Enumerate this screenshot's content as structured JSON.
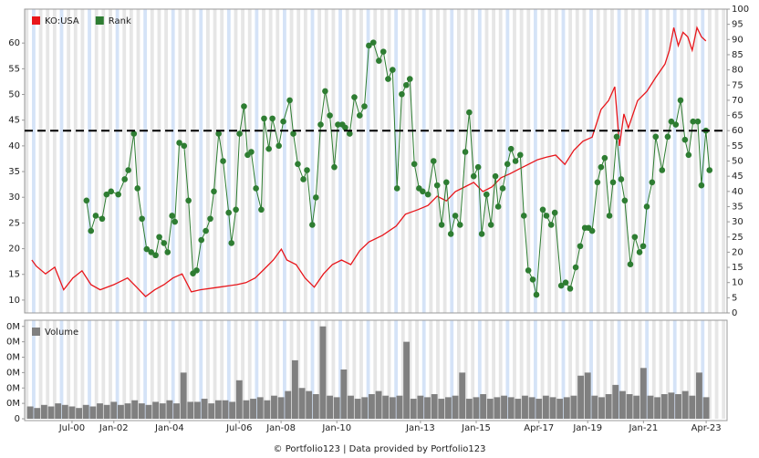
{
  "chart_data": [
    {
      "type": "line",
      "legend": "top-left",
      "xlim": [
        1998.8,
        2024.0
      ],
      "ylim": [
        7.5,
        66.6
      ],
      "yticks": [
        10,
        15,
        20,
        25,
        30,
        35,
        40,
        45,
        50,
        55,
        60
      ],
      "y2lim": [
        0,
        100
      ],
      "y2ticks": [
        0,
        5,
        10,
        15,
        20,
        25,
        30,
        35,
        40,
        45,
        50,
        55,
        60,
        65,
        70,
        75,
        80,
        85,
        90,
        95,
        100
      ],
      "reference_line": {
        "value": 60,
        "axis": "y2"
      },
      "series": [
        {
          "name": "KO:USA",
          "color": "#e8161b",
          "x": [
            1999.06,
            1999.22,
            1999.55,
            1999.88,
            2000.2,
            2000.53,
            2000.86,
            2001.18,
            2001.51,
            2002.0,
            2002.49,
            2002.82,
            2003.14,
            2003.47,
            2003.8,
            2004.12,
            2004.45,
            2004.78,
            2005.1,
            2005.76,
            2006.41,
            2006.74,
            2007.07,
            2007.39,
            2007.72,
            2008.01,
            2008.21,
            2008.54,
            2008.86,
            2009.19,
            2009.52,
            2009.84,
            2010.17,
            2010.5,
            2010.82,
            2011.15,
            2011.64,
            2012.13,
            2012.46,
            2012.92,
            2013.27,
            2013.6,
            2013.93,
            2014.25,
            2014.58,
            2014.91,
            2015.24,
            2015.56,
            2015.89,
            2016.22,
            2016.54,
            2016.87,
            2017.2,
            2017.52,
            2017.85,
            2018.18,
            2018.5,
            2018.83,
            2019.16,
            2019.48,
            2019.75,
            2019.97,
            2020.14,
            2020.3,
            2020.46,
            2020.79,
            2021.12,
            2021.44,
            2021.77,
            2021.93,
            2022.09,
            2022.25,
            2022.42,
            2022.59,
            2022.75,
            2022.92,
            2023.08,
            2023.24
          ],
          "values": [
            17.8,
            16.6,
            15.1,
            16.4,
            12.0,
            14.3,
            15.7,
            13.0,
            12.0,
            13.0,
            14.3,
            12.5,
            10.7,
            12.0,
            13.0,
            14.3,
            15.1,
            11.6,
            12.0,
            12.5,
            13.0,
            13.4,
            14.3,
            16.0,
            17.8,
            19.9,
            17.8,
            16.9,
            14.3,
            12.5,
            15.1,
            16.9,
            17.8,
            16.9,
            19.6,
            21.3,
            22.6,
            24.4,
            26.7,
            27.6,
            28.4,
            30.2,
            29.3,
            31.1,
            32.0,
            32.9,
            31.1,
            32.0,
            33.8,
            34.6,
            35.5,
            36.4,
            37.3,
            37.8,
            38.2,
            36.4,
            39.1,
            40.9,
            41.7,
            47.1,
            48.8,
            51.5,
            40.0,
            46.2,
            43.5,
            48.8,
            50.6,
            53.3,
            55.9,
            58.6,
            63.0,
            59.5,
            62.1,
            61.2,
            58.6,
            63.0,
            61.2,
            60.4
          ]
        },
        {
          "name": "Rank",
          "color": "#2e7d32",
          "axis": "y2",
          "markers": true,
          "x": [
            2001.02,
            2001.18,
            2001.35,
            2001.58,
            2001.74,
            2001.9,
            2002.16,
            2002.39,
            2002.52,
            2002.72,
            2002.85,
            2003.01,
            2003.18,
            2003.34,
            2003.5,
            2003.63,
            2003.8,
            2003.93,
            2004.09,
            2004.19,
            2004.35,
            2004.52,
            2004.68,
            2004.84,
            2004.97,
            2005.14,
            2005.3,
            2005.46,
            2005.59,
            2005.76,
            2005.92,
            2006.12,
            2006.22,
            2006.38,
            2006.51,
            2006.67,
            2006.8,
            2006.93,
            2007.1,
            2007.29,
            2007.39,
            2007.56,
            2007.69,
            2007.92,
            2008.08,
            2008.31,
            2008.44,
            2008.6,
            2008.8,
            2008.93,
            2009.12,
            2009.25,
            2009.42,
            2009.58,
            2009.75,
            2009.91,
            2010.04,
            2010.2,
            2010.3,
            2010.46,
            2010.63,
            2010.82,
            2010.99,
            2011.15,
            2011.31,
            2011.51,
            2011.67,
            2011.84,
            2012.0,
            2012.16,
            2012.33,
            2012.49,
            2012.62,
            2012.78,
            2012.95,
            2013.08,
            2013.27,
            2013.47,
            2013.6,
            2013.76,
            2013.93,
            2014.09,
            2014.25,
            2014.42,
            2014.61,
            2014.75,
            2014.91,
            2015.07,
            2015.2,
            2015.37,
            2015.53,
            2015.69,
            2015.79,
            2015.95,
            2016.12,
            2016.25,
            2016.41,
            2016.58,
            2016.71,
            2016.87,
            2017.03,
            2017.16,
            2017.39,
            2017.52,
            2017.69,
            2017.82,
            2018.05,
            2018.21,
            2018.37,
            2018.57,
            2018.73,
            2018.9,
            2019.03,
            2019.16,
            2019.35,
            2019.48,
            2019.61,
            2019.78,
            2019.91,
            2020.04,
            2020.2,
            2020.33,
            2020.53,
            2020.69,
            2020.86,
            2020.99,
            2021.12,
            2021.31,
            2021.44,
            2021.67,
            2021.87,
            2022.0,
            2022.16,
            2022.33,
            2022.49,
            2022.62,
            2022.78,
            2022.95,
            2023.08,
            2023.24,
            2023.37
          ],
          "values": [
            37,
            27,
            32,
            31,
            39,
            40,
            39,
            44,
            47,
            59,
            41,
            31,
            21,
            20,
            19,
            25,
            23,
            20,
            32,
            30,
            56,
            55,
            37,
            13,
            14,
            24,
            27,
            31,
            40,
            59,
            50,
            33,
            23,
            34,
            59,
            68,
            52,
            53,
            41,
            34,
            64,
            54,
            64,
            55,
            63,
            70,
            59,
            49,
            44,
            47,
            29,
            38,
            62,
            73,
            65,
            48,
            62,
            62,
            61,
            59,
            71,
            65,
            68,
            88,
            89,
            83,
            86,
            77,
            80,
            41,
            72,
            75,
            77,
            49,
            41,
            40,
            39,
            50,
            42,
            29,
            43,
            26,
            32,
            29,
            53,
            66,
            45,
            48,
            26,
            39,
            29,
            45,
            35,
            41,
            49,
            54,
            50,
            52,
            32,
            14,
            11,
            6,
            34,
            32,
            29,
            33,
            9,
            10,
            8,
            15,
            22,
            28,
            28,
            27,
            43,
            48,
            51,
            32,
            43,
            58,
            44,
            37,
            16,
            25,
            20,
            22,
            35,
            43,
            58,
            47,
            58,
            63,
            62,
            70,
            57,
            52,
            63,
            63,
            42,
            60,
            47
          ]
        }
      ]
    },
    {
      "type": "bar",
      "legend": "top-left",
      "xlim": [
        1998.8,
        2024.0
      ],
      "xticks": [
        {
          "value": 2000.5,
          "label": "Jul-00"
        },
        {
          "value": 2002,
          "label": "Jan-02"
        },
        {
          "value": 2004,
          "label": "Jan-04"
        },
        {
          "value": 2006.5,
          "label": "Jul-06"
        },
        {
          "value": 2008,
          "label": "Jan-08"
        },
        {
          "value": 2010,
          "label": "Jan-10"
        },
        {
          "value": 2013,
          "label": "Jan-13"
        },
        {
          "value": 2015,
          "label": "Jan-15"
        },
        {
          "value": 2017.25,
          "label": "Apr-17"
        },
        {
          "value": 2019,
          "label": "Jan-19"
        },
        {
          "value": 2021,
          "label": "Jan-21"
        },
        {
          "value": 2023.25,
          "label": "Apr-23"
        }
      ],
      "ylim": [
        0,
        64
      ],
      "yticks": [
        0,
        {
          "value": 10,
          "label": "0M"
        },
        {
          "value": 20,
          "label": "0M"
        },
        {
          "value": 30,
          "label": "0M"
        },
        {
          "value": 40,
          "label": "0M"
        },
        {
          "value": 50,
          "label": "0M"
        },
        {
          "value": 60,
          "label": "0M"
        }
      ],
      "series": [
        {
          "name": "Volume",
          "color": "#808080",
          "x": [
            1999,
            1999.25,
            1999.5,
            1999.75,
            2000,
            2000.25,
            2000.5,
            2000.75,
            2001,
            2001.25,
            2001.5,
            2001.75,
            2002,
            2002.25,
            2002.5,
            2002.75,
            2003,
            2003.25,
            2003.5,
            2003.75,
            2004,
            2004.25,
            2004.5,
            2004.75,
            2005,
            2005.25,
            2005.5,
            2005.75,
            2006,
            2006.25,
            2006.5,
            2006.75,
            2007,
            2007.25,
            2007.5,
            2007.75,
            2008,
            2008.25,
            2008.5,
            2008.75,
            2009,
            2009.25,
            2009.5,
            2009.75,
            2010,
            2010.25,
            2010.5,
            2010.75,
            2011,
            2011.25,
            2011.5,
            2011.75,
            2012,
            2012.25,
            2012.5,
            2012.75,
            2013,
            2013.25,
            2013.5,
            2013.75,
            2014,
            2014.25,
            2014.5,
            2014.75,
            2015,
            2015.25,
            2015.5,
            2015.75,
            2016,
            2016.25,
            2016.5,
            2016.75,
            2017,
            2017.25,
            2017.5,
            2017.75,
            2018,
            2018.25,
            2018.5,
            2018.75,
            2019,
            2019.25,
            2019.5,
            2019.75,
            2020,
            2020.25,
            2020.5,
            2020.75,
            2021,
            2021.25,
            2021.5,
            2021.75,
            2022,
            2022.25,
            2022.5,
            2022.75,
            2023,
            2023.25
          ],
          "values": [
            8,
            7,
            9,
            8,
            10,
            9,
            8,
            7,
            9,
            8,
            10,
            9,
            11,
            9,
            10,
            12,
            10,
            9,
            11,
            10,
            12,
            10,
            30,
            11,
            11,
            13,
            10,
            12,
            12,
            11,
            25,
            12,
            13,
            14,
            12,
            15,
            14,
            18,
            38,
            20,
            18,
            16,
            60,
            15,
            14,
            32,
            15,
            13,
            14,
            16,
            18,
            15,
            14,
            15,
            50,
            13,
            15,
            14,
            16,
            13,
            14,
            15,
            30,
            13,
            14,
            16,
            13,
            14,
            15,
            14,
            13,
            15,
            14,
            13,
            15,
            14,
            13,
            14,
            15,
            28,
            30,
            15,
            14,
            16,
            22,
            18,
            16,
            15,
            33,
            15,
            14,
            16,
            17,
            16,
            18,
            15,
            30,
            14
          ]
        }
      ]
    }
  ],
  "footer": "© Portfolio123 | Data provided by Portfolio123"
}
